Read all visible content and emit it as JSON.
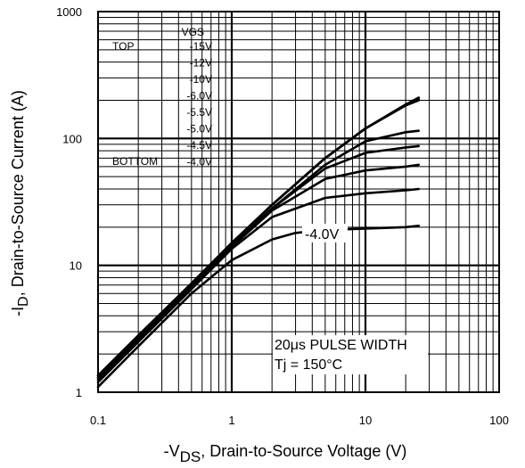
{
  "chart_data": {
    "type": "line",
    "x_scale": "log",
    "y_scale": "log",
    "xlim": [
      0.1,
      100
    ],
    "ylim": [
      1,
      1000
    ],
    "grid": true,
    "x_tick_labels": [
      "0.1",
      "1",
      "10",
      "100"
    ],
    "y_tick_labels": [
      "1",
      "10",
      "100",
      "1000"
    ],
    "ylabel": {
      "prefix": "-I",
      "sub": "D",
      "suffix": ", Drain-to-Source Current (A)"
    },
    "xlabel": {
      "prefix": "-V",
      "sub": "DS",
      "suffix": ", Drain-to-Source Voltage (V)"
    },
    "legend": {
      "header": "VGS",
      "top_label": "TOP",
      "bottom_label": "BOTTOM",
      "entries": [
        "-15V",
        "-12V",
        "-10V",
        "-6.0V",
        "-5.5V",
        "-5.0V",
        "-4.5V",
        "-4.0V"
      ],
      "placement": "top-left"
    },
    "annotations": {
      "curve_label": "-4.0V",
      "pulse": "20μs PULSE WIDTH",
      "tj": "Tj = 150°C"
    },
    "series": [
      {
        "name": "-15V",
        "x": [
          0.1,
          0.2,
          0.5,
          1,
          2,
          5,
          10,
          20,
          25
        ],
        "y": [
          1.35,
          2.8,
          7.2,
          15,
          30,
          70,
          120,
          185,
          210
        ]
      },
      {
        "name": "-12V",
        "x": [
          0.1,
          0.2,
          0.5,
          1,
          2,
          5,
          10,
          20,
          25
        ],
        "y": [
          1.35,
          2.8,
          7.2,
          15,
          30,
          70,
          120,
          185,
          205
        ]
      },
      {
        "name": "-10V",
        "x": [
          0.1,
          0.2,
          0.5,
          1,
          2,
          5,
          10,
          20,
          25
        ],
        "y": [
          1.35,
          2.8,
          7.2,
          15,
          30,
          70,
          120,
          182,
          200
        ]
      },
      {
        "name": "-6.0V",
        "x": [
          0.1,
          0.2,
          0.5,
          1,
          2,
          5,
          10,
          20,
          25
        ],
        "y": [
          1.3,
          2.7,
          7.0,
          14.5,
          28,
          62,
          95,
          112,
          115
        ]
      },
      {
        "name": "-5.5V",
        "x": [
          0.1,
          0.2,
          0.5,
          1,
          2,
          5,
          10,
          20,
          25
        ],
        "y": [
          1.3,
          2.7,
          7.0,
          14.5,
          28,
          58,
          77,
          85,
          87
        ]
      },
      {
        "name": "-5.0V",
        "x": [
          0.1,
          0.2,
          0.5,
          1,
          2,
          5,
          10,
          20,
          25
        ],
        "y": [
          1.25,
          2.6,
          6.8,
          14,
          27,
          48,
          56,
          60,
          62
        ]
      },
      {
        "name": "-4.5V",
        "x": [
          0.1,
          0.2,
          0.5,
          1,
          2,
          5,
          10,
          20,
          25
        ],
        "y": [
          1.2,
          2.5,
          6.5,
          13.5,
          24,
          34,
          37,
          39,
          40
        ]
      },
      {
        "name": "-4.0V",
        "x": [
          0.1,
          0.2,
          0.5,
          1,
          2,
          3,
          5,
          10,
          20,
          25
        ],
        "y": [
          1.1,
          2.3,
          6.0,
          11,
          16,
          18,
          19,
          19.5,
          20,
          20.5
        ]
      }
    ]
  }
}
